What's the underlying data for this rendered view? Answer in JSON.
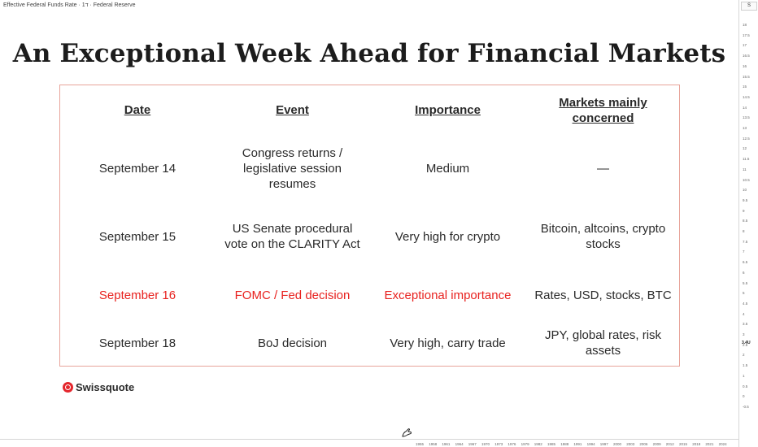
{
  "chart_header": {
    "title": "Effective Federal Funds Rate · 1ד · Federal Reserve"
  },
  "price_axis": {
    "scale_button": "S",
    "ticks": [
      "18",
      "17.5",
      "17",
      "16.5",
      "16",
      "15.5",
      "15",
      "14.5",
      "14",
      "13.5",
      "13",
      "12.5",
      "12",
      "11.5",
      "11",
      "10.5",
      "10",
      "9.5",
      "9",
      "8.5",
      "8",
      "7.5",
      "7",
      "6.5",
      "6",
      "5.5",
      "5",
      "4.5",
      "4",
      "3.5",
      "3",
      "2.5",
      "2",
      "1.5",
      "1",
      "0.5",
      "0",
      "-0.5"
    ],
    "current_value": "3.4U"
  },
  "time_axis": {
    "years": [
      "1955",
      "1958",
      "1961",
      "1964",
      "1967",
      "1970",
      "1973",
      "1976",
      "1979",
      "1982",
      "1985",
      "1988",
      "1991",
      "1994",
      "1997",
      "2000",
      "2003",
      "2006",
      "2009",
      "2012",
      "2015",
      "2018",
      "2021",
      "2024"
    ]
  },
  "slide": {
    "title": "An Exceptional Week Ahead for Financial Markets",
    "headers": {
      "date": "Date",
      "event": "Event",
      "importance": "Importance",
      "markets_line1": "Markets mainly",
      "markets_line2": "concerned"
    },
    "rows": [
      {
        "date": "September 14",
        "event": [
          "Congress returns /",
          "legislative session",
          "resumes"
        ],
        "importance": [
          "Medium"
        ],
        "markets": [
          "—"
        ],
        "highlight": false
      },
      {
        "date": "September 15",
        "event": [
          "US Senate procedural",
          "vote on the CLARITY Act"
        ],
        "importance": [
          "Very high for crypto"
        ],
        "markets": [
          "Bitcoin, altcoins, crypto",
          "stocks"
        ],
        "highlight": false
      },
      {
        "date": "September 16",
        "event": [
          "FOMC / Fed decision"
        ],
        "importance": [
          "Exceptional importance"
        ],
        "markets": [
          "Rates, USD, stocks, BTC"
        ],
        "highlight": true
      },
      {
        "date": "September 18",
        "event": [
          "BoJ decision"
        ],
        "importance": [
          "Very high, carry trade"
        ],
        "markets": [
          "JPY, global rates, risk",
          "assets"
        ],
        "highlight": false
      }
    ],
    "brand": "Swissquote",
    "colors": {
      "highlight": "#e8221f",
      "border": "#e8a49a",
      "brand_red": "#e4262c"
    }
  }
}
